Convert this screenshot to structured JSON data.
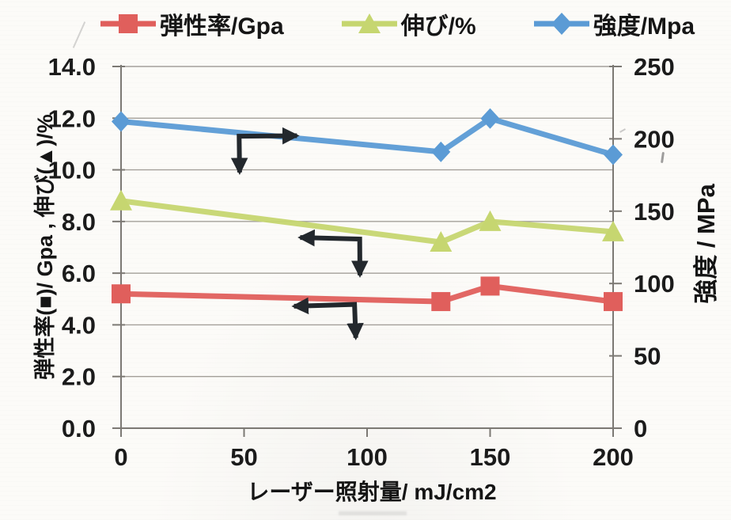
{
  "legend": {
    "items": [
      {
        "label": "弾性率/Gpa",
        "color": "#e05f5c",
        "marker": "square"
      },
      {
        "label": "伸び/%",
        "color": "#c6d670",
        "marker": "triangle"
      },
      {
        "label": "強度/Mpa",
        "color": "#5b9bd5",
        "marker": "diamond"
      }
    ]
  },
  "chart_data": {
    "type": "line",
    "x": [
      0,
      130,
      150,
      200
    ],
    "xticks": [
      "0",
      "50",
      "100",
      "150",
      "200"
    ],
    "xlabel": "レーザー照射量/ mJ/cm2",
    "ylabel_left": "弾性率(■)/ Gpa , 伸び(▲)/%",
    "ylabel_right": "強度 / MPa",
    "xlim": [
      0,
      200
    ],
    "ylim_left": [
      0,
      14
    ],
    "ylim_right": [
      0,
      250
    ],
    "yticks_left": [
      "14.0",
      "12.0",
      "10.0",
      "8.0",
      "6.0",
      "4.0",
      "2.0",
      "0.0"
    ],
    "yticks_right": [
      "250",
      "200",
      "150",
      "100",
      "50",
      "0"
    ],
    "grid": "horizontal",
    "legend_position": "top",
    "series": [
      {
        "id": "modulus",
        "name": "弾性率/Gpa",
        "axis": "left",
        "marker": "square",
        "color": "#e05f5c",
        "values": [
          5.2,
          4.9,
          5.5,
          4.9
        ]
      },
      {
        "id": "elongation",
        "name": "伸び/%",
        "axis": "left",
        "marker": "triangle",
        "color": "#c6d670",
        "values": [
          8.8,
          7.2,
          8.0,
          7.6
        ]
      },
      {
        "id": "strength",
        "name": "強度/Mpa",
        "axis": "right",
        "marker": "diamond",
        "color": "#5b9bd5",
        "values": [
          212,
          191,
          214,
          189
        ]
      }
    ],
    "annotations": [
      {
        "name": "strength-axis-arrow",
        "corner": [
          48.0,
          11.3
        ],
        "h_tip": [
          71.5,
          11.32
        ],
        "v_tip": [
          48.2,
          9.9
        ]
      },
      {
        "name": "elongation-axis-arrow",
        "corner": [
          97.0,
          7.32
        ],
        "h_tip": [
          72.8,
          7.38
        ],
        "v_tip": [
          97.1,
          5.92
        ]
      },
      {
        "name": "modulus-axis-arrow",
        "corner": [
          94.9,
          4.79
        ],
        "h_tip": [
          70.3,
          4.72
        ],
        "v_tip": [
          95.4,
          3.5
        ]
      }
    ],
    "colors": {
      "grid": "#a4a09a",
      "axis": "#7c7974",
      "text": "#1b1b1b",
      "annotation": "#23282d",
      "background": "#fcfbf8"
    }
  }
}
